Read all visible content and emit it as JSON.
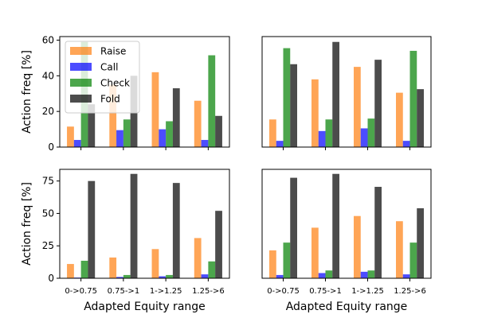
{
  "chart_data": {
    "type": "bar",
    "layout": "2x2 grid",
    "categories": [
      "0->0.75",
      "0.75->1",
      "1->1.25",
      "1.25->6"
    ],
    "xlabel": "Adapted Equity range",
    "ylabel": "Action freq [%]",
    "colors": {
      "Raise": "#ff7f0e",
      "Call": "#0000ff",
      "Check": "#008000",
      "Fold": "#000000"
    },
    "bar_opacity": 0.7,
    "legend": {
      "placement": "upper-left of top-left panel",
      "entries": [
        "Raise",
        "Call",
        "Check",
        "Fold"
      ]
    },
    "rows": [
      {
        "ylim": [
          0,
          62
        ],
        "yticks": [
          0,
          20,
          40,
          60
        ]
      },
      {
        "ylim": [
          0,
          84
        ],
        "yticks": [
          0,
          25,
          50,
          75
        ]
      }
    ],
    "panels": [
      {
        "id": "top-left",
        "series": [
          {
            "name": "Raise",
            "values": [
              11.5,
              35,
              42,
              26
            ]
          },
          {
            "name": "Call",
            "values": [
              4,
              9.5,
              10,
              4
            ]
          },
          {
            "name": "Check",
            "values": [
              59,
              15.5,
              14.5,
              51.5
            ]
          },
          {
            "name": "Fold",
            "values": [
              24,
              40,
              33,
              17.5
            ]
          }
        ]
      },
      {
        "id": "top-right",
        "series": [
          {
            "name": "Raise",
            "values": [
              15.5,
              38,
              45,
              30.5
            ]
          },
          {
            "name": "Call",
            "values": [
              3.5,
              9,
              10.5,
              3.5
            ]
          },
          {
            "name": "Check",
            "values": [
              55.5,
              15.5,
              16,
              54
            ]
          },
          {
            "name": "Fold",
            "values": [
              46.5,
              59,
              49,
              32.5
            ]
          }
        ]
      },
      {
        "id": "bottom-left",
        "series": [
          {
            "name": "Raise",
            "values": [
              11,
              16,
              22.5,
              31
            ]
          },
          {
            "name": "Call",
            "values": [
              0.5,
              1,
              1.5,
              3
            ]
          },
          {
            "name": "Check",
            "values": [
              13.5,
              2.5,
              2.5,
              13
            ]
          },
          {
            "name": "Fold",
            "values": [
              75,
              80.5,
              73.5,
              52
            ]
          }
        ]
      },
      {
        "id": "bottom-right",
        "series": [
          {
            "name": "Raise",
            "values": [
              21.5,
              39,
              48,
              44
            ]
          },
          {
            "name": "Call",
            "values": [
              2.5,
              4,
              5,
              3
            ]
          },
          {
            "name": "Check",
            "values": [
              27.5,
              6,
              6,
              27.5
            ]
          },
          {
            "name": "Fold",
            "values": [
              77.5,
              80.5,
              70.5,
              54
            ]
          }
        ]
      }
    ]
  }
}
